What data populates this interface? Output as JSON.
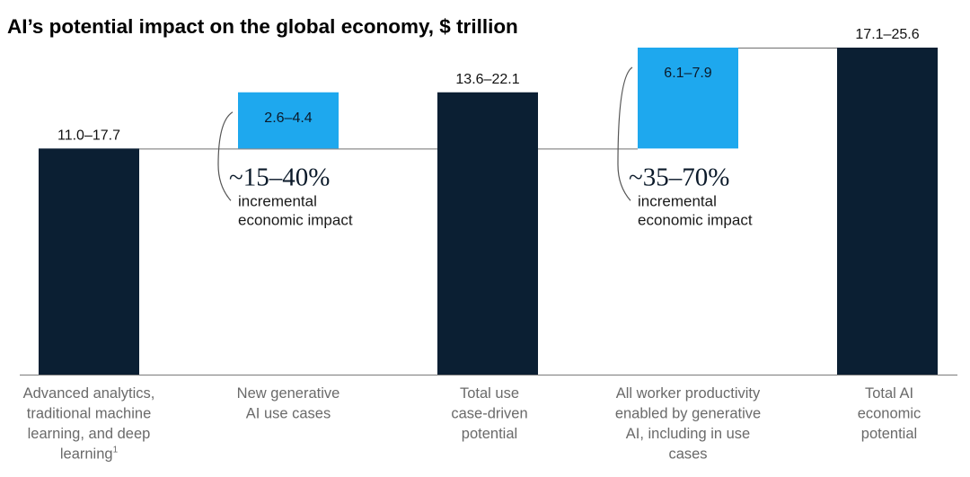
{
  "chart_data": {
    "type": "bar",
    "subtype": "waterfall",
    "title": "AI’s potential impact on the global economy, $ trillion",
    "ylabel": "",
    "xlabel": "",
    "ylim": [
      0,
      25.6
    ],
    "categories": [
      {
        "lines": [
          "Advanced analytics,",
          "traditional machine",
          "learning, and deep",
          "learning"
        ],
        "superscript": "1"
      },
      {
        "lines": [
          "New generative",
          "AI use cases"
        ],
        "superscript": ""
      },
      {
        "lines": [
          "Total use",
          "case-driven",
          "potential"
        ],
        "superscript": ""
      },
      {
        "lines": [
          "All worker productivity",
          "enabled by generative",
          "AI, including in use",
          "cases"
        ],
        "superscript": ""
      },
      {
        "lines": [
          "Total AI",
          "economic",
          "potential"
        ],
        "superscript": ""
      }
    ],
    "bars": [
      {
        "kind": "total",
        "base": 0,
        "low": 11.0,
        "high": 17.7,
        "label": "11.0–17.7"
      },
      {
        "kind": "increment",
        "base": 17.7,
        "low": 2.6,
        "high": 4.4,
        "label": "2.6–4.4"
      },
      {
        "kind": "total",
        "base": 0,
        "low": 13.6,
        "high": 22.1,
        "label": "13.6–22.1"
      },
      {
        "kind": "increment",
        "base": 17.7,
        "low": 6.1,
        "high": 7.9,
        "label": "6.1–7.9"
      },
      {
        "kind": "total",
        "base": 0,
        "low": 17.1,
        "high": 25.6,
        "label": "17.1–25.6"
      }
    ],
    "annotations": [
      {
        "bar": 1,
        "percent": "~15–40%",
        "lines": [
          "incremental",
          "economic impact"
        ]
      },
      {
        "bar": 3,
        "percent": "~35–70%",
        "lines": [
          "incremental",
          "economic impact"
        ]
      }
    ],
    "colors": {
      "total": "#0b1f33",
      "increment": "#1ea8ee",
      "connector": "#6f6f6f",
      "axis": "#7a7a7a",
      "category_text": "#6a6a6a"
    }
  }
}
